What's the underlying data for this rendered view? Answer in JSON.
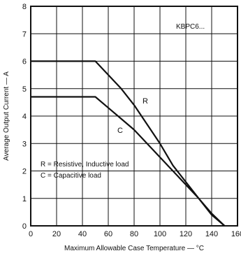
{
  "chart_data": {
    "type": "line",
    "title": "",
    "xlabel": "Maximum Allowable Case Temperature — °C",
    "ylabel": "Average Output Current — A",
    "xlim": [
      0,
      160
    ],
    "ylim": [
      0,
      8
    ],
    "x_ticks": [
      "0",
      "20",
      "40",
      "60",
      "80",
      "100",
      "120",
      "140",
      "160"
    ],
    "y_ticks": [
      "0",
      "1",
      "2",
      "3",
      "4",
      "5",
      "6",
      "7",
      "8"
    ],
    "grid": true,
    "series": [
      {
        "name": "R",
        "points": [
          [
            0,
            6.0
          ],
          [
            50,
            6.0
          ],
          [
            60,
            5.5
          ],
          [
            70,
            5.0
          ],
          [
            80,
            4.4
          ],
          [
            90,
            3.7
          ],
          [
            100,
            3.0
          ],
          [
            110,
            2.2
          ],
          [
            120,
            1.6
          ],
          [
            130,
            1.0
          ],
          [
            140,
            0.4
          ],
          [
            150,
            0.0
          ]
        ]
      },
      {
        "name": "C",
        "points": [
          [
            0,
            4.7
          ],
          [
            50,
            4.7
          ],
          [
            60,
            4.3
          ],
          [
            70,
            3.9
          ],
          [
            80,
            3.5
          ],
          [
            90,
            3.0
          ],
          [
            100,
            2.5
          ],
          [
            110,
            2.0
          ],
          [
            120,
            1.5
          ],
          [
            130,
            1.0
          ],
          [
            140,
            0.45
          ],
          [
            150,
            0.0
          ]
        ]
      }
    ],
    "annotations": {
      "part_number": "KBPC6...",
      "legend_r": "R = Resistive, Inductive load",
      "legend_c": "C = Capacitive load"
    }
  },
  "colors": {
    "line": "#111111",
    "background": "#ffffff"
  }
}
